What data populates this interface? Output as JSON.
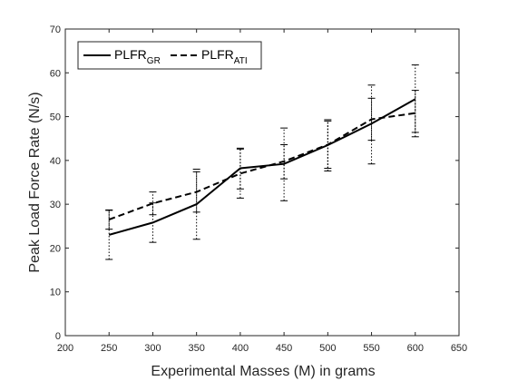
{
  "chart_data": {
    "type": "line",
    "title": "",
    "xlabel": "Experimental Masses (M) in grams",
    "ylabel": "Peak Load Force Rate (N/s)",
    "xlim": [
      200,
      650
    ],
    "ylim": [
      0,
      70
    ],
    "xticks": [
      200,
      250,
      300,
      350,
      400,
      450,
      500,
      550,
      600,
      650
    ],
    "yticks": [
      0,
      10,
      20,
      30,
      40,
      50,
      60,
      70
    ],
    "x": [
      250,
      300,
      350,
      400,
      450,
      500,
      550,
      600
    ],
    "grid": false,
    "legend_position": "top-left",
    "legend": {
      "gr": {
        "main": "PLFR",
        "sub": "GR"
      },
      "ati": {
        "main": "PLFR",
        "sub": "ATI"
      }
    },
    "series": [
      {
        "key": "gr",
        "style": "solid",
        "color": "#000000",
        "values": [
          23,
          25.8,
          30,
          38.2,
          39.2,
          43.5,
          48.4,
          54
        ],
        "err_lower": [
          17.4,
          21.3,
          22,
          33.5,
          35.8,
          37.6,
          44.6,
          46.4
        ],
        "err_upper": [
          28.6,
          30.3,
          38,
          42.8,
          43.6,
          49.3,
          54.2,
          61.8
        ]
      },
      {
        "key": "ati",
        "style": "dashed",
        "color": "#000000",
        "values": [
          26.5,
          30.2,
          32.8,
          37,
          39.8,
          43.6,
          49.4,
          50.8
        ],
        "err_lower": [
          24.3,
          27.6,
          28.2,
          31.4,
          30.8,
          38.2,
          39.2,
          45.4
        ],
        "err_upper": [
          28.7,
          32.8,
          37.4,
          42.6,
          47.4,
          49,
          57.2,
          56
        ]
      }
    ]
  }
}
